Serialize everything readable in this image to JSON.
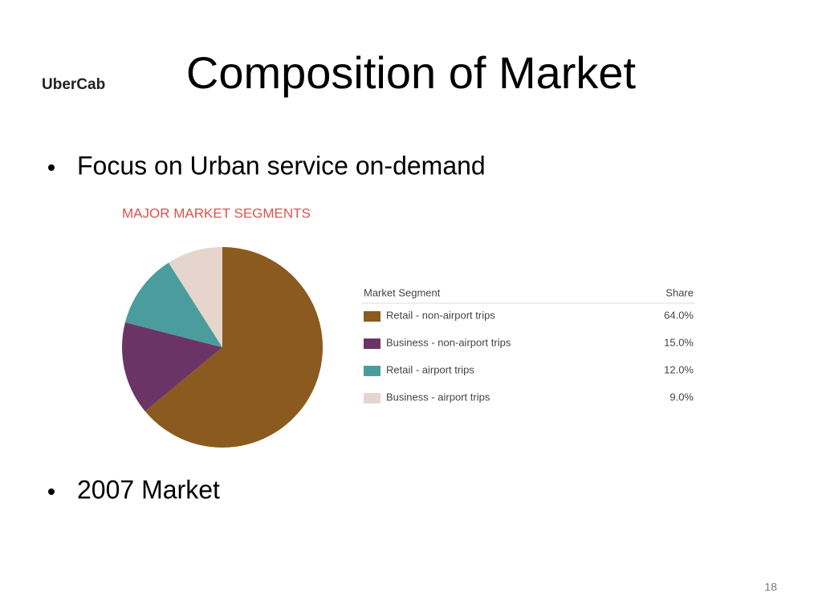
{
  "slide": {
    "logo": "UberCab",
    "title": "Composition of Market",
    "bullets": [
      "Focus on Urban service on-demand",
      "2007 Market"
    ],
    "page_number": "18"
  },
  "chart_data": {
    "type": "pie",
    "title": "MAJOR MARKET SEGMENTS",
    "legend_columns": [
      "Market Segment",
      "Share"
    ],
    "categories": [
      "Retail - non-airport trips",
      "Business - non-airport trips",
      "Retail - airport trips",
      "Business - airport trips"
    ],
    "values": [
      64,
      15,
      12,
      9
    ],
    "value_labels": [
      "64.0%",
      "15.0%",
      "12.0%",
      "9.0%"
    ],
    "colors": [
      "#8b5a1e",
      "#6a3566",
      "#4a9d9c",
      "#e6d5cd"
    ]
  }
}
